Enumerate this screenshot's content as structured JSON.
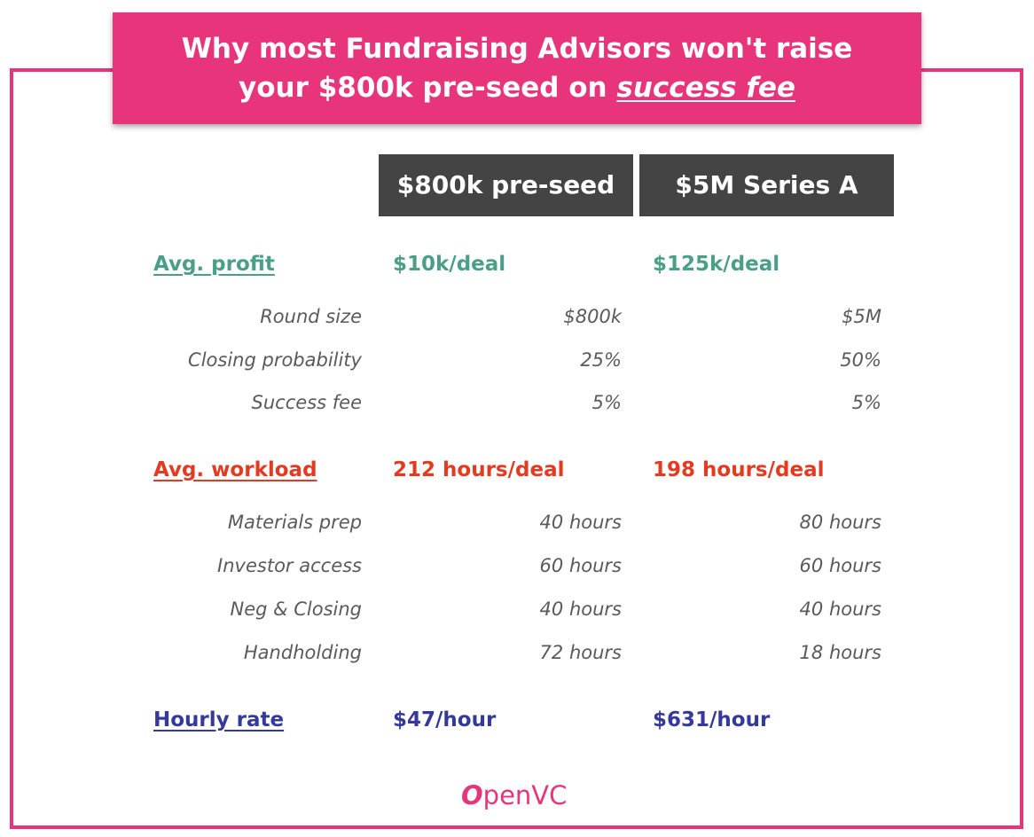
{
  "title": {
    "line1": "Why most Fundraising Advisors won't raise",
    "line2_prefix": "your $800k pre-seed on ",
    "line2_emph": "success fee"
  },
  "columns": [
    "$800k pre-seed",
    "$5M Series A"
  ],
  "profit": {
    "label": "Avg. profit",
    "values": [
      "$10k/deal",
      "$125k/deal"
    ],
    "rows": [
      {
        "label": "Round size",
        "values": [
          "$800k",
          "$5M"
        ]
      },
      {
        "label": "Closing probability",
        "values": [
          "25%",
          "50%"
        ]
      },
      {
        "label": "Success fee",
        "values": [
          "5%",
          "5%"
        ]
      }
    ]
  },
  "workload": {
    "label": "Avg. workload",
    "values": [
      "212 hours/deal",
      "198 hours/deal"
    ],
    "rows": [
      {
        "label": "Materials prep",
        "values": [
          "40 hours",
          "80 hours"
        ]
      },
      {
        "label": "Investor access",
        "values": [
          "60 hours",
          "60 hours"
        ]
      },
      {
        "label": "Neg & Closing",
        "values": [
          "40 hours",
          "40 hours"
        ]
      },
      {
        "label": "Handholding",
        "values": [
          "72 hours",
          "18 hours"
        ]
      }
    ]
  },
  "hourly": {
    "label": "Hourly rate",
    "values": [
      "$47/hour",
      "$631/hour"
    ]
  },
  "logo": {
    "mark": "O",
    "text": "penVC"
  },
  "colors": {
    "pink": "#e8347a",
    "green": "#4a9e8a",
    "red": "#e23b22",
    "blue": "#34399a",
    "header_bg": "#444444"
  }
}
